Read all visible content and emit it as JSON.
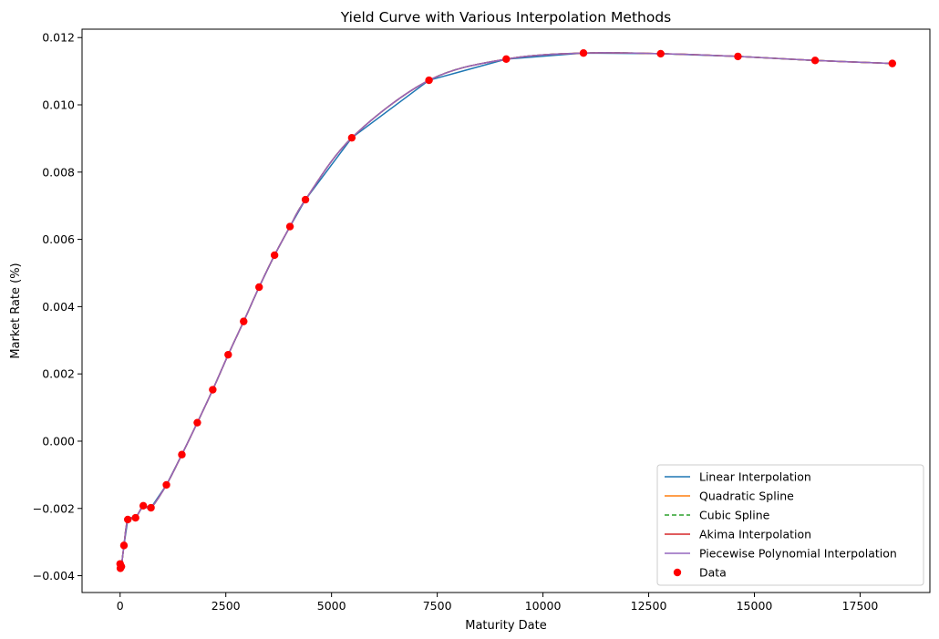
{
  "chart_data": {
    "type": "line",
    "title": "Yield Curve with Various Interpolation Methods",
    "xlabel": "Maturity Date",
    "ylabel": "Market Rate (%)",
    "xlim": [
      -900,
      19150
    ],
    "ylim": [
      -0.0045,
      0.01225
    ],
    "x_ticks": [
      0,
      2500,
      5000,
      7500,
      10000,
      12500,
      15000,
      17500
    ],
    "x_tick_labels": [
      "0",
      "2500",
      "5000",
      "7500",
      "10000",
      "12500",
      "15000",
      "17500"
    ],
    "y_ticks": [
      -0.004,
      -0.002,
      0.0,
      0.002,
      0.004,
      0.006,
      0.008,
      0.01,
      0.012
    ],
    "y_tick_labels": [
      "−0.004",
      "−0.002",
      "0.000",
      "0.002",
      "0.004",
      "0.006",
      "0.008",
      "0.010",
      "0.012"
    ],
    "grid": false,
    "legend_placement": "bottom-right",
    "data_points": {
      "x": [
        1,
        7,
        30,
        91,
        182,
        365,
        548,
        730,
        1095,
        1460,
        1826,
        2191,
        2556,
        2922,
        3287,
        3652,
        4017,
        4383,
        5479,
        7305,
        9131,
        10958,
        12784,
        14610,
        16436,
        18262
      ],
      "y": [
        -0.00365,
        -0.00378,
        -0.00373,
        -0.0031,
        -0.00233,
        -0.00228,
        -0.00192,
        -0.00198,
        -0.0013,
        -0.0004,
        0.00055,
        0.00153,
        0.00257,
        0.00356,
        0.00458,
        0.00553,
        0.00638,
        0.00718,
        0.00902,
        0.01073,
        0.01136,
        0.01154,
        0.01152,
        0.01144,
        0.01132,
        0.01123
      ]
    },
    "series": [
      {
        "name": "Linear Interpolation",
        "color": "#1f77b4",
        "style": "solid",
        "method": "linear"
      },
      {
        "name": "Quadratic Spline",
        "color": "#ff7f0e",
        "style": "solid",
        "method": "smooth"
      },
      {
        "name": "Cubic Spline",
        "color": "#2ca02c",
        "style": "dashed",
        "method": "smooth"
      },
      {
        "name": "Akima Interpolation",
        "color": "#d62728",
        "style": "solid",
        "method": "smooth"
      },
      {
        "name": "Piecewise Polynomial Interpolation",
        "color": "#9467bd",
        "style": "solid",
        "method": "smooth"
      }
    ],
    "scatter": {
      "name": "Data",
      "color": "#ff0000"
    }
  }
}
